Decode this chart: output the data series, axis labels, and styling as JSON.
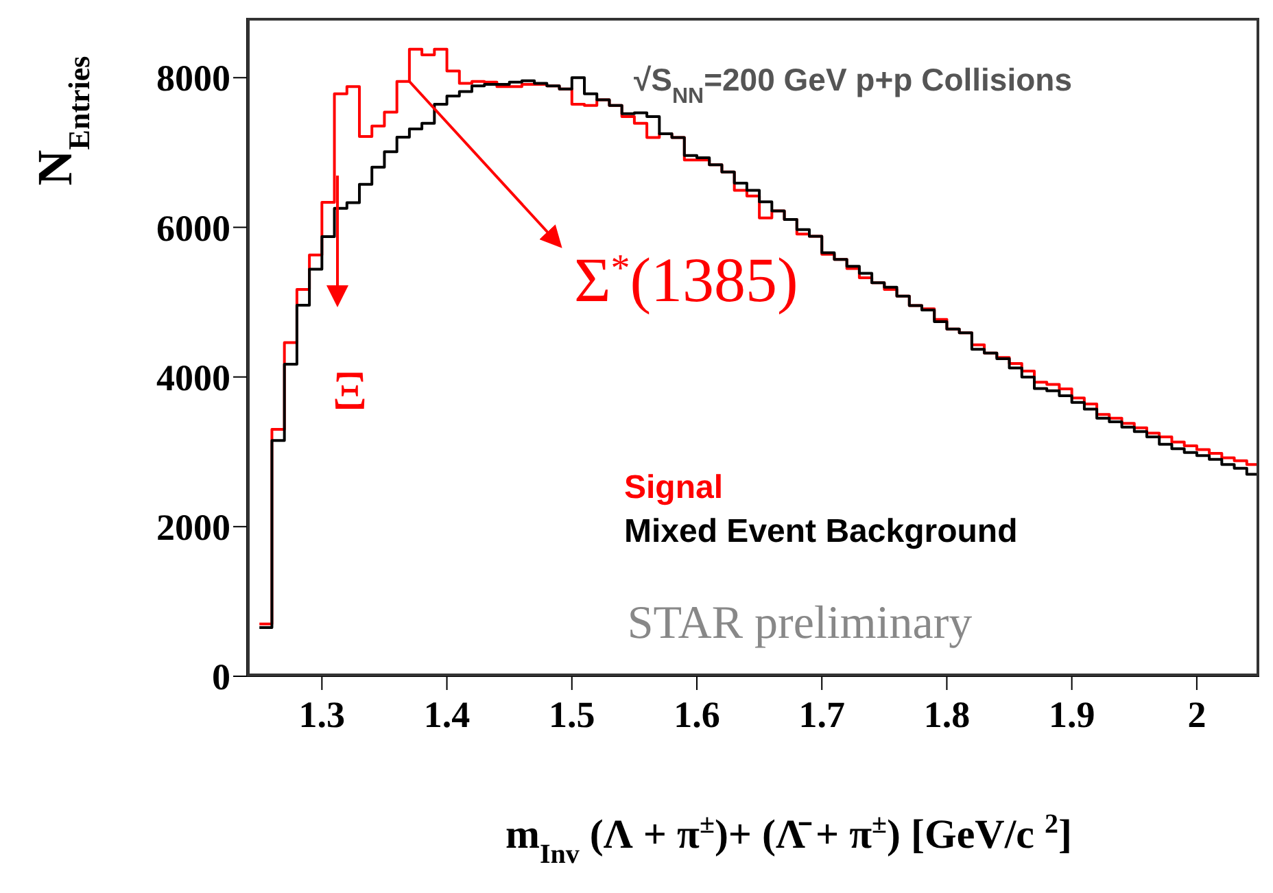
{
  "chart_data": {
    "type": "histogram",
    "xlabel": "m$_{Inv}$ (Λ + π$^{±}$)+ (Λ̄ + π$^{±}$)  [GeV/c $^{2}$]",
    "ylabel": "N$_{Entries}$",
    "bins": [
      1.25,
      1.26,
      1.27,
      1.28,
      1.29,
      1.3,
      1.31,
      1.32,
      1.33,
      1.34,
      1.35,
      1.36,
      1.37,
      1.38,
      1.39,
      1.4,
      1.41,
      1.42,
      1.43,
      1.44,
      1.45,
      1.46,
      1.47,
      1.48,
      1.49,
      1.5,
      1.51,
      1.52,
      1.53,
      1.54,
      1.55,
      1.56,
      1.57,
      1.58,
      1.59,
      1.6,
      1.61,
      1.62,
      1.63,
      1.64,
      1.65,
      1.66,
      1.67,
      1.68,
      1.69,
      1.7,
      1.71,
      1.72,
      1.73,
      1.74,
      1.75,
      1.76,
      1.77,
      1.78,
      1.79,
      1.8,
      1.81,
      1.82,
      1.83,
      1.84,
      1.85,
      1.86,
      1.87,
      1.88,
      1.89,
      1.9,
      1.91,
      1.92,
      1.93,
      1.94,
      1.95,
      1.96,
      1.97,
      1.98,
      1.99,
      2,
      2.01,
      2.02,
      2.03,
      2.04,
      2.05
    ],
    "series": [
      {
        "name": "Signal",
        "color": "#ff0000",
        "values": [
          700,
          3300,
          4460,
          5170,
          5630,
          6335,
          7785,
          7880,
          7215,
          7355,
          7540,
          7950,
          8380,
          8305,
          8380,
          8090,
          7925,
          7950,
          7940,
          7880,
          7880,
          7910,
          7910,
          7890,
          7850,
          7645,
          7630,
          7705,
          7630,
          7480,
          7390,
          7200,
          7250,
          7200,
          6900,
          6900,
          6835,
          6740,
          6495,
          6420,
          6125,
          6220,
          6105,
          5910,
          5880,
          5640,
          5570,
          5450,
          5325,
          5260,
          5170,
          5080,
          4955,
          4910,
          4770,
          4640,
          4590,
          4430,
          4320,
          4260,
          4180,
          4080,
          3930,
          3900,
          3840,
          3720,
          3640,
          3500,
          3450,
          3380,
          3320,
          3250,
          3200,
          3130,
          3080,
          3030,
          2980,
          2920,
          2880,
          2830
        ]
      },
      {
        "name": "Mixed Event Background",
        "color": "#000000",
        "values": [
          650,
          3150,
          4170,
          4960,
          5440,
          5875,
          6255,
          6330,
          6575,
          6805,
          7010,
          7205,
          7315,
          7390,
          7645,
          7755,
          7815,
          7890,
          7910,
          7910,
          7940,
          7960,
          7925,
          7890,
          7850,
          8000,
          7785,
          7705,
          7630,
          7520,
          7530,
          7480,
          7250,
          7200,
          6960,
          6930,
          6835,
          6740,
          6590,
          6495,
          6340,
          6220,
          6105,
          5970,
          5880,
          5660,
          5570,
          5480,
          5385,
          5260,
          5200,
          5080,
          4955,
          4895,
          4740,
          4640,
          4590,
          4370,
          4320,
          4245,
          4120,
          4000,
          3845,
          3815,
          3750,
          3660,
          3570,
          3450,
          3400,
          3330,
          3270,
          3200,
          3100,
          3040,
          2990,
          2950,
          2900,
          2830,
          2780,
          2700
        ]
      }
    ],
    "xlim": [
      1.24,
      2.05
    ],
    "xticks": [
      1.3,
      1.4,
      1.5,
      1.6,
      1.7,
      1.8,
      1.9,
      2
    ],
    "ylim": [
      0,
      8800
    ],
    "yticks": [
      0,
      2000,
      4000,
      6000,
      8000
    ],
    "grid": false,
    "legend": "right",
    "annotations": [
      "√S$_{NN}$=200 GeV p+p Collisions",
      "STAR preliminary",
      "Ξ",
      {
        "text": "Σ$^{*}$(1385)",
        "x": 1.37,
        "y": 7950
      }
    ]
  }
}
